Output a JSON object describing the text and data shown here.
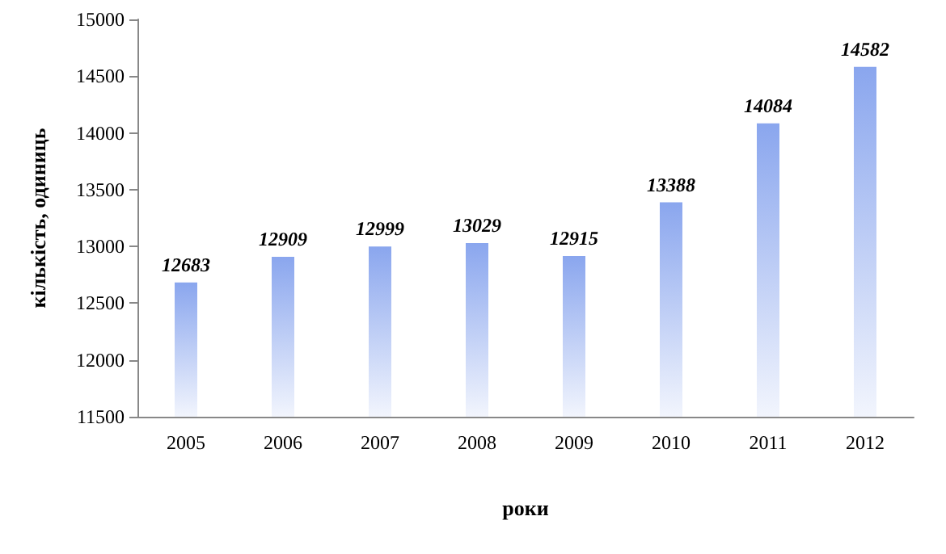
{
  "chart_data": {
    "type": "bar",
    "xlabel": "роки",
    "ylabel": "кількість, одиниць",
    "categories": [
      "2005",
      "2006",
      "2007",
      "2008",
      "2009",
      "2010",
      "2011",
      "2012"
    ],
    "values": [
      12683,
      12909,
      12999,
      13029,
      12915,
      13388,
      14084,
      14582
    ],
    "color": "#8aa6ee",
    "ylim": [
      11500,
      15000
    ],
    "yticks": [
      11500,
      12000,
      12500,
      13000,
      13500,
      14000,
      14500,
      15000
    ],
    "grid": false,
    "data_labels": true
  }
}
